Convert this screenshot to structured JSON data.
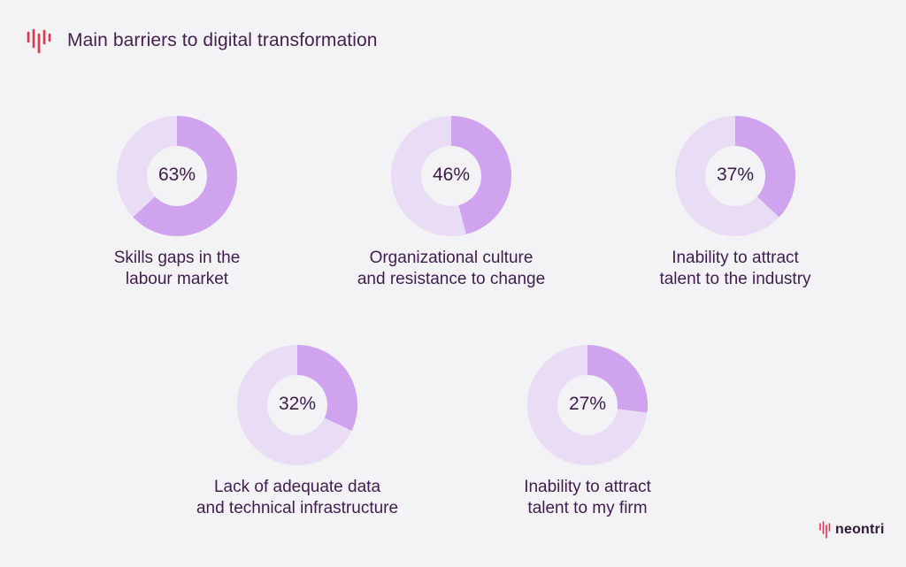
{
  "colors": {
    "filled": "#CFA3EE",
    "track": "#E8DDF4",
    "hole": "#F3F2F5",
    "brand_red": "#E8344E",
    "text": "#3F1E4F"
  },
  "header": {
    "title": "Main barriers to digital transformation",
    "icon": "brand-waveform-icon"
  },
  "footer": {
    "logo_text": "neontri",
    "icon": "brand-waveform-icon"
  },
  "chart_data": {
    "type": "donut",
    "title": "Main barriers to digital transformation",
    "unit": "%",
    "items": [
      {
        "label_lines": [
          "Skills gaps in the",
          "labour market"
        ],
        "value": 63,
        "value_label": "63%"
      },
      {
        "label_lines": [
          "Organizational culture",
          "and resistance to change"
        ],
        "value": 46,
        "value_label": "46%"
      },
      {
        "label_lines": [
          "Inability to attract",
          "talent to the industry"
        ],
        "value": 37,
        "value_label": "37%"
      },
      {
        "label_lines": [
          "Lack of adequate data",
          "and technical infrastructure"
        ],
        "value": 32,
        "value_label": "32%"
      },
      {
        "label_lines": [
          "Inability to attract",
          "talent to my firm"
        ],
        "value": 27,
        "value_label": "27%"
      }
    ]
  }
}
